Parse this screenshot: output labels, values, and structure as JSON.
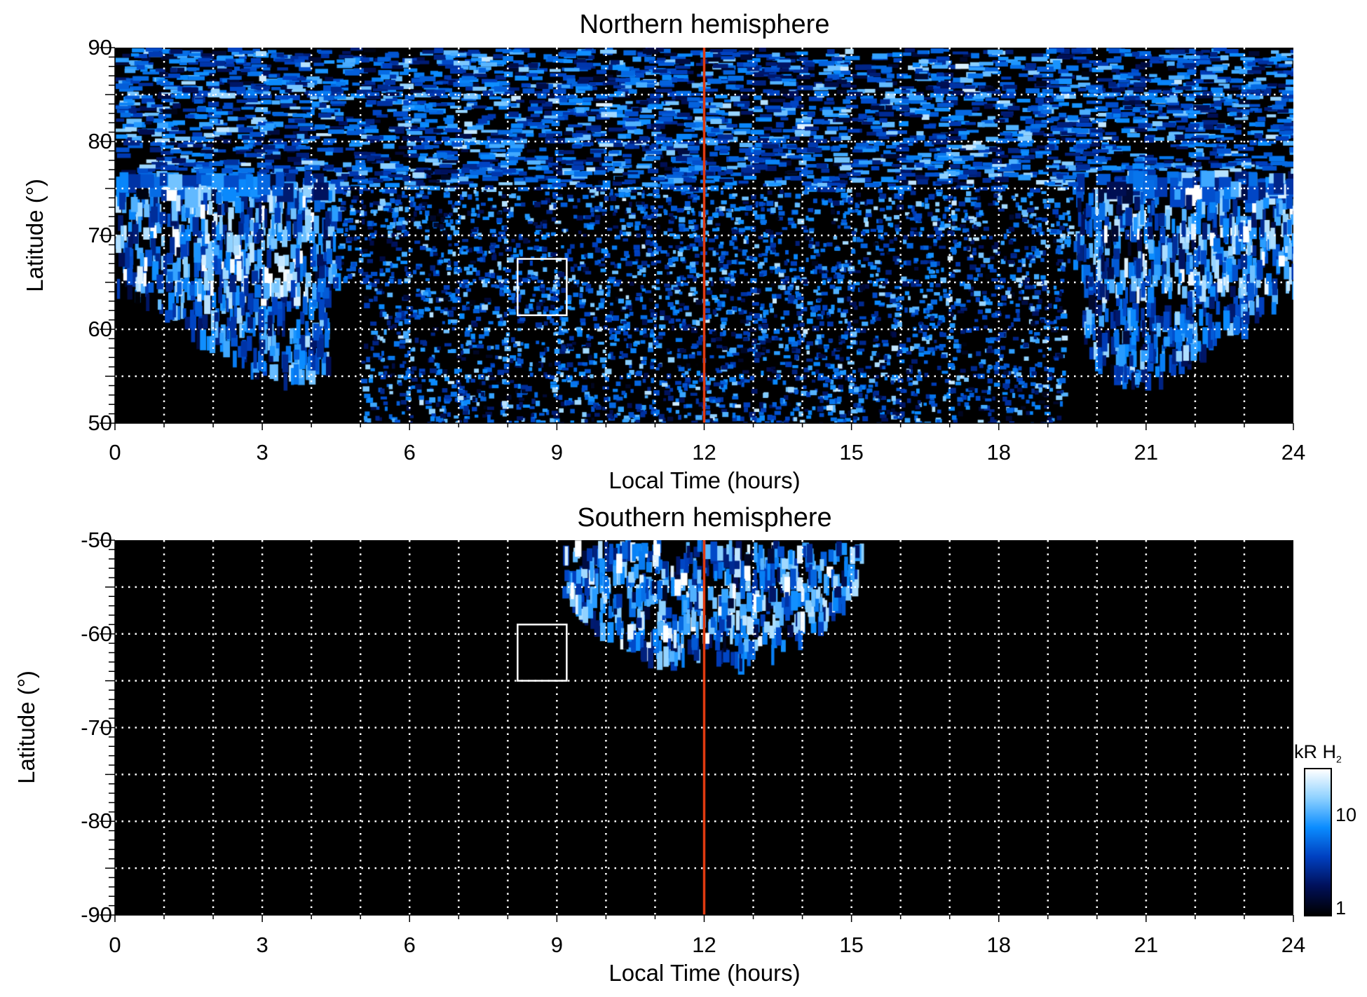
{
  "chart_data": [
    {
      "type": "heatmap",
      "title": "Northern hemisphere",
      "xlabel": "Local Time (hours)",
      "ylabel": "Latitude (°)",
      "xlim": [
        0,
        24
      ],
      "ylim": [
        50,
        90
      ],
      "xticks": [
        "0",
        "3",
        "6",
        "9",
        "12",
        "15",
        "18",
        "21",
        "24"
      ],
      "yticks": [
        "50",
        "60",
        "70",
        "80",
        "90"
      ],
      "grid": "dotted white, every 1 h and 5°",
      "noon_line_lt": 12,
      "noon_line_color": "#e03a10",
      "highlight_box": {
        "lt": [
          8.2,
          9.2
        ],
        "lat": [
          61.5,
          67.5
        ]
      },
      "coverage": "poleward of ~65° at all LT; down to 50° between ~5 and ~19.3 LT; arcs to ~54° near 3.5 and 21 LT"
    },
    {
      "type": "heatmap",
      "title": "Southern hemisphere",
      "xlabel": "Local Time (hours)",
      "ylabel": "Latitude (°)",
      "xlim": [
        0,
        24
      ],
      "ylim": [
        -90,
        -50
      ],
      "xticks": [
        "0",
        "3",
        "6",
        "9",
        "12",
        "15",
        "18",
        "21",
        "24"
      ],
      "yticks": [
        "-50",
        "-60",
        "-70",
        "-80",
        "-90"
      ],
      "grid": "dotted white, every 1 h and 5°",
      "noon_line_lt": 12,
      "noon_line_color": "#e03a10",
      "highlight_box": {
        "lt": [
          8.2,
          9.2
        ],
        "lat": [
          -65,
          -59
        ]
      },
      "coverage": "between ~9.1 and ~15.3 LT, from -50° down to ~-62.5° near noon"
    }
  ],
  "colorbar": {
    "label": "kR H",
    "label_sub": "2",
    "scale": "log",
    "range": [
      1,
      30
    ],
    "ticks": [
      "1",
      "10"
    ],
    "colors": [
      "#000000",
      "#00105a",
      "#0040c0",
      "#0a8cff",
      "#8cd0ff",
      "#ffffff"
    ]
  }
}
